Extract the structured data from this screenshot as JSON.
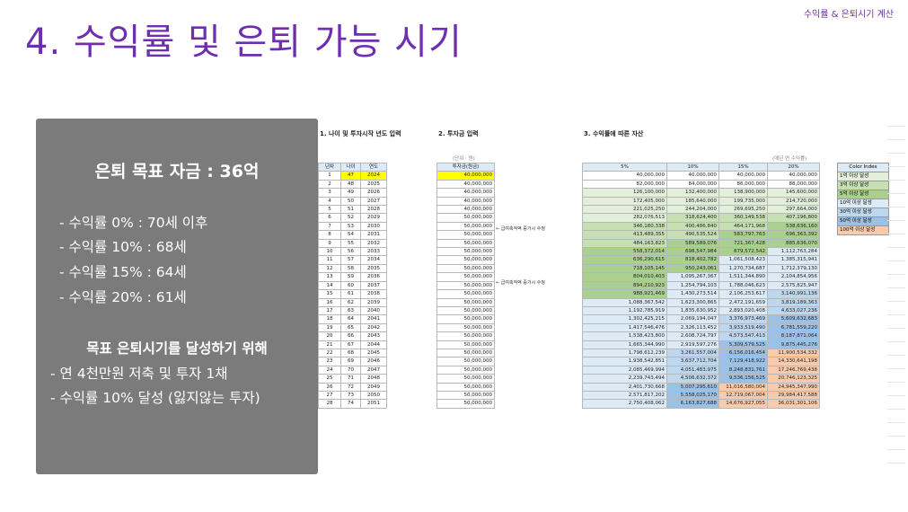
{
  "header": {
    "title": "4. 수익률 및 은퇴 가능 시기",
    "top_right": "수익률 & 은퇴시기 계산"
  },
  "panel": {
    "title": "은퇴 목표 자금 : 36억",
    "rates": [
      "- 수익률   0% : 70세 이후",
      "- 수익률 10% : 68세",
      "- 수익률 15% : 64세",
      "- 수익률 20% : 61세"
    ],
    "subtitle": "목표 은퇴시기를 달성하기 위해",
    "actions": [
      "- 연 4천만원 저축 및 투자 1채",
      "- 수익률 10% 달성 (잃지않는 투자)"
    ]
  },
  "sheet": {
    "section1": "1. 나이 및 투자시작 년도 입력",
    "section2": "2. 투자금 입력",
    "section3": "3. 수익률에 따른 자산",
    "unit_note": "(단위 : 원)",
    "yield_note": "(매년 연 수익률)",
    "side_notes": [
      "← 급여축적액 증가시 수정",
      "← 급여축적액 증가시 수정"
    ],
    "headers": [
      "년차",
      "나이",
      "연도",
      "투자금(원금)",
      "5%",
      "10%",
      "15%",
      "20%"
    ],
    "rows": [
      [
        "1",
        "47",
        "2024",
        "40,000,000",
        "40,000,000",
        "40,000,000",
        "40,000,000",
        "40,000,000"
      ],
      [
        "2",
        "48",
        "2025",
        "40,000,000",
        "82,000,000",
        "84,000,000",
        "86,000,000",
        "88,000,000"
      ],
      [
        "3",
        "49",
        "2026",
        "40,000,000",
        "126,100,000",
        "132,400,000",
        "138,900,000",
        "145,600,000"
      ],
      [
        "4",
        "50",
        "2027",
        "40,000,000",
        "172,405,000",
        "185,640,000",
        "199,735,000",
        "214,720,000"
      ],
      [
        "5",
        "51",
        "2028",
        "40,000,000",
        "221,025,250",
        "244,204,000",
        "269,695,250",
        "297,664,000"
      ],
      [
        "6",
        "52",
        "2029",
        "50,000,000",
        "282,076,513",
        "318,624,400",
        "360,149,538",
        "407,196,800"
      ],
      [
        "7",
        "53",
        "2030",
        "50,000,000",
        "346,180,338",
        "400,486,840",
        "464,171,968",
        "538,636,160"
      ],
      [
        "8",
        "54",
        "2031",
        "50,000,000",
        "413,489,355",
        "490,535,524",
        "583,797,763",
        "696,363,392"
      ],
      [
        "9",
        "55",
        "2032",
        "50,000,000",
        "484,163,823",
        "589,589,076",
        "721,367,428",
        "885,636,070"
      ],
      [
        "10",
        "56",
        "2033",
        "50,000,000",
        "558,372,014",
        "698,547,984",
        "879,572,542",
        "1,112,763,284"
      ],
      [
        "11",
        "57",
        "2034",
        "50,000,000",
        "636,290,615",
        "818,402,782",
        "1,061,508,423",
        "1,385,315,941"
      ],
      [
        "12",
        "58",
        "2035",
        "50,000,000",
        "718,105,145",
        "950,243,061",
        "1,270,734,687",
        "1,712,379,130"
      ],
      [
        "13",
        "59",
        "2036",
        "50,000,000",
        "804,010,403",
        "1,095,267,367",
        "1,511,344,890",
        "2,104,854,956"
      ],
      [
        "14",
        "60",
        "2037",
        "50,000,000",
        "894,210,923",
        "1,254,794,103",
        "1,788,046,623",
        "2,575,825,947"
      ],
      [
        "15",
        "61",
        "2038",
        "50,000,000",
        "988,921,469",
        "1,430,273,514",
        "2,106,253,617",
        "3,140,991,136"
      ],
      [
        "16",
        "62",
        "2039",
        "50,000,000",
        "1,088,367,542",
        "1,623,300,865",
        "2,472,191,659",
        "3,819,189,363"
      ],
      [
        "17",
        "63",
        "2040",
        "50,000,000",
        "1,192,785,919",
        "1,835,630,952",
        "2,893,020,408",
        "4,633,027,236"
      ],
      [
        "18",
        "64",
        "2041",
        "50,000,000",
        "1,302,425,215",
        "2,069,194,047",
        "3,376,973,469",
        "5,609,632,683"
      ],
      [
        "19",
        "65",
        "2042",
        "50,000,000",
        "1,417,546,476",
        "2,326,113,452",
        "3,933,519,490",
        "6,781,559,220"
      ],
      [
        "20",
        "66",
        "2043",
        "50,000,000",
        "1,538,423,800",
        "2,608,724,797",
        "4,573,547,413",
        "8,187,871,064"
      ],
      [
        "21",
        "67",
        "2044",
        "50,000,000",
        "1,665,344,990",
        "2,919,597,276",
        "5,309,579,525",
        "9,875,445,276"
      ],
      [
        "22",
        "68",
        "2045",
        "50,000,000",
        "1,798,612,239",
        "3,261,557,004",
        "6,156,016,454",
        "11,900,534,332"
      ],
      [
        "23",
        "69",
        "2046",
        "50,000,000",
        "1,938,542,851",
        "3,637,712,704",
        "7,129,418,922",
        "14,330,641,198"
      ],
      [
        "24",
        "70",
        "2047",
        "50,000,000",
        "2,085,469,994",
        "4,051,483,975",
        "8,248,831,761",
        "17,246,769,438"
      ],
      [
        "25",
        "71",
        "2048",
        "50,000,000",
        "2,239,743,494",
        "4,506,632,372",
        "9,536,156,525",
        "20,746,123,325"
      ],
      [
        "26",
        "72",
        "2049",
        "50,000,000",
        "2,401,730,668",
        "5,007,295,610",
        "11,016,580,004",
        "24,945,347,990"
      ],
      [
        "27",
        "73",
        "2050",
        "50,000,000",
        "2,571,817,202",
        "5,558,025,170",
        "12,719,067,004",
        "29,984,417,588"
      ],
      [
        "28",
        "74",
        "2051",
        "50,000,000",
        "2,750,408,062",
        "6,163,827,688",
        "14,676,927,055",
        "36,031,301,106"
      ]
    ],
    "color_index": {
      "header": "Color Index",
      "items": [
        {
          "label": "1억 이상 달성",
          "color": "#e2efda"
        },
        {
          "label": "3억 이상 달성",
          "color": "#c6e0b4"
        },
        {
          "label": "5억 이상 달성",
          "color": "#a9d08e"
        },
        {
          "label": "10억 이상 달성",
          "color": "#ddebf7"
        },
        {
          "label": "30억 이상 달성",
          "color": "#bdd7ee"
        },
        {
          "label": "50억 이상 달성",
          "color": "#9bc2e6"
        },
        {
          "label": "100억 이상 달성",
          "color": "#f8cbad"
        }
      ]
    }
  }
}
